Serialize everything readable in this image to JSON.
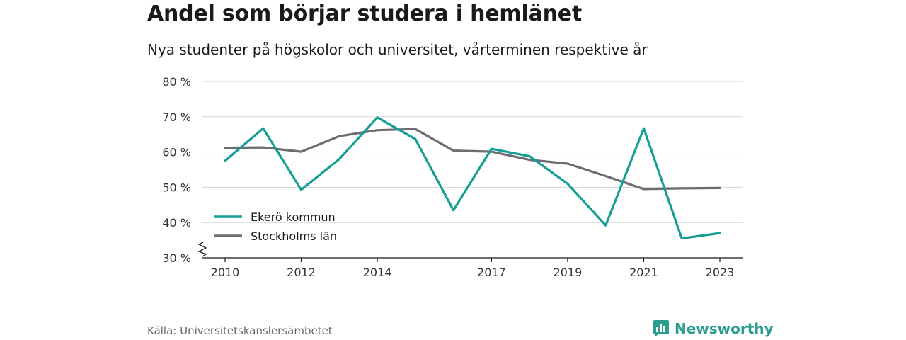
{
  "title": "Andel som börjar studera i hemlänet",
  "subtitle": "Nya studenter på högskolor och universitet, vårterminen respektive år",
  "source": "Källa: Universitetskanslersämbetet",
  "brand": {
    "name": "Newsworthy",
    "icon": "newsworthy-logo-icon",
    "color": "#2a9d8f"
  },
  "chart_data": {
    "type": "line",
    "x": [
      2010,
      2011,
      2012,
      2013,
      2014,
      2015,
      2016,
      2017,
      2018,
      2019,
      2020,
      2021,
      2022,
      2023
    ],
    "x_tick_labels": [
      "2010",
      "2012",
      "2014",
      "2017",
      "2019",
      "2021",
      "2023"
    ],
    "y_tick_labels": [
      "30 %",
      "40 %",
      "50 %",
      "60 %",
      "70 %",
      "80 %"
    ],
    "ylim": [
      30,
      80
    ],
    "y_axis_break": true,
    "grid": "horizontal",
    "legend_position": "bottom-left",
    "series": [
      {
        "name": "Ekerö kommun",
        "color": "#159e94",
        "values": [
          57.5,
          66.7,
          49.3,
          58,
          69.8,
          63.7,
          43.5,
          60.9,
          58.8,
          51,
          39.2,
          66.7,
          35.5,
          37
        ]
      },
      {
        "name": "Stockholms län",
        "color": "#6e6d71",
        "values": [
          61.2,
          61.3,
          60.1,
          64.5,
          66.2,
          66.5,
          60.4,
          60.1,
          57.8,
          56.7,
          53.2,
          49.5,
          49.7,
          49.8
        ]
      }
    ]
  }
}
